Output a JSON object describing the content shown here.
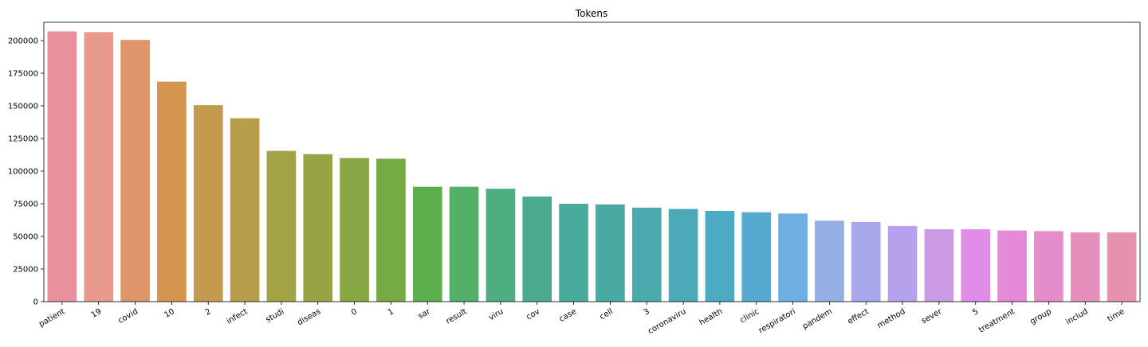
{
  "chart_data": {
    "type": "bar",
    "title": "Tokens",
    "xlabel": "",
    "ylabel": "",
    "ylim": [
      0,
      214000
    ],
    "yticks": [
      0,
      25000,
      50000,
      75000,
      100000,
      125000,
      150000,
      175000,
      200000
    ],
    "grid": false,
    "categories": [
      "patient",
      "19",
      "covid",
      "10",
      "2",
      "infect",
      "studi",
      "diseas",
      "0",
      "1",
      "sar",
      "result",
      "viru",
      "cov",
      "case",
      "cell",
      "3",
      "coronaviru",
      "health",
      "clinic",
      "respiratori",
      "pandem",
      "effect",
      "method",
      "sever",
      "5",
      "treatment",
      "group",
      "includ",
      "time"
    ],
    "values": [
      207000,
      206500,
      200500,
      168500,
      150500,
      140500,
      115500,
      113000,
      110000,
      109500,
      88000,
      88000,
      86500,
      80500,
      75000,
      74500,
      72000,
      71000,
      69500,
      68500,
      67500,
      62000,
      61000,
      58000,
      55500,
      55500,
      54500,
      54000,
      53000,
      53000
    ],
    "colors": [
      "#e8919c",
      "#e89a8c",
      "#e0966a",
      "#d39550",
      "#c49a4c",
      "#b89e4a",
      "#a2a345",
      "#98a443",
      "#86a743",
      "#75aa45",
      "#5daf4d",
      "#54b068",
      "#4fae81",
      "#4aab91",
      "#48ab9b",
      "#48aaa2",
      "#4aaaad",
      "#4caab8",
      "#4daac4",
      "#56aacf",
      "#6eaee0",
      "#96aee6",
      "#aaa8ec",
      "#b6a2ec",
      "#cc9be6",
      "#df8de8",
      "#e58ad8",
      "#e58ccb",
      "#e68fbd",
      "#e592b0"
    ]
  }
}
